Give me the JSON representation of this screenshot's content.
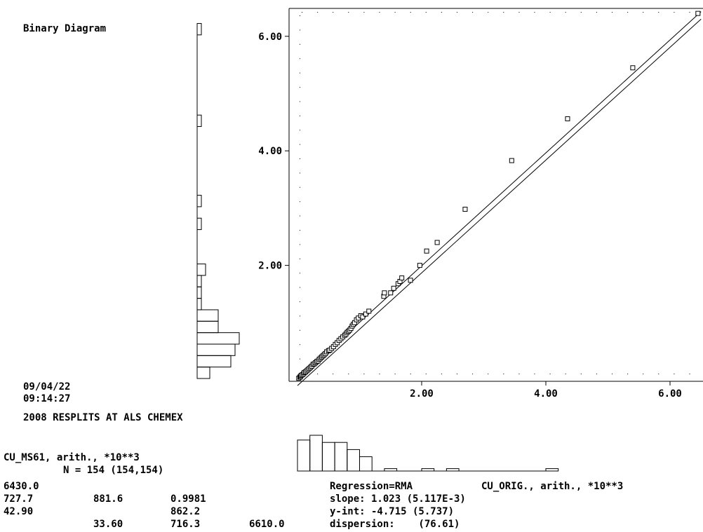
{
  "header": {
    "title": "Binary Diagram"
  },
  "info": {
    "date": "09/04/22",
    "time": "09:14:27",
    "project": "2008 RESPLITS AT ALS CHEMEX"
  },
  "stats_y": {
    "variable": "CU_MS61, arith., *10**3",
    "n_line": "N = 154 (154,154)",
    "max": "6430.0",
    "mean": "727.7",
    "sd": "881.6",
    "r": "0.9981",
    "min": "42.90",
    "v862": "862.2",
    "v33": "33.60",
    "v716": "716.3",
    "v6610": "6610.0"
  },
  "regression": {
    "method": "Regression=RMA",
    "x_variable": "CU_ORIG., arith., *10**3",
    "slope": "slope: 1.023 (5.117E-3)",
    "yint": "y-int: -4.715 (5.737)",
    "dispersion": "dispersion:    (76.61)"
  },
  "chart_data": {
    "type": "scatter",
    "xlim": [
      0,
      6.5
    ],
    "ylim": [
      0,
      6.45
    ],
    "xticks": [
      "2.00",
      "4.00",
      "6.00"
    ],
    "xtick_values": [
      2,
      4,
      6
    ],
    "yticks": [
      "2.00",
      "4.00",
      "6.00"
    ],
    "ytick_values": [
      2,
      4,
      6
    ],
    "grid": false,
    "points": [
      [
        0.02,
        0.03
      ],
      [
        0.04,
        0.05
      ],
      [
        0.05,
        0.06
      ],
      [
        0.06,
        0.08
      ],
      [
        0.08,
        0.09
      ],
      [
        0.1,
        0.11
      ],
      [
        0.11,
        0.13
      ],
      [
        0.13,
        0.14
      ],
      [
        0.15,
        0.16
      ],
      [
        0.17,
        0.18
      ],
      [
        0.19,
        0.2
      ],
      [
        0.21,
        0.22
      ],
      [
        0.23,
        0.24
      ],
      [
        0.25,
        0.27
      ],
      [
        0.27,
        0.28
      ],
      [
        0.29,
        0.3
      ],
      [
        0.31,
        0.32
      ],
      [
        0.33,
        0.33
      ],
      [
        0.35,
        0.36
      ],
      [
        0.37,
        0.38
      ],
      [
        0.39,
        0.4
      ],
      [
        0.41,
        0.42
      ],
      [
        0.43,
        0.44
      ],
      [
        0.45,
        0.46
      ],
      [
        0.47,
        0.49
      ],
      [
        0.5,
        0.51
      ],
      [
        0.52,
        0.52
      ],
      [
        0.55,
        0.55
      ],
      [
        0.58,
        0.58
      ],
      [
        0.61,
        0.62
      ],
      [
        0.64,
        0.65
      ],
      [
        0.67,
        0.69
      ],
      [
        0.7,
        0.72
      ],
      [
        0.73,
        0.75
      ],
      [
        0.76,
        0.78
      ],
      [
        0.78,
        0.8
      ],
      [
        0.8,
        0.83
      ],
      [
        0.82,
        0.85
      ],
      [
        0.84,
        0.87
      ],
      [
        0.86,
        0.9
      ],
      [
        0.88,
        0.94
      ],
      [
        0.9,
        0.97
      ],
      [
        0.92,
        1.0
      ],
      [
        0.95,
        1.05
      ],
      [
        0.98,
        1.08
      ],
      [
        1.02,
        1.12
      ],
      [
        1.05,
        1.1
      ],
      [
        1.1,
        1.15
      ],
      [
        1.15,
        1.2
      ],
      [
        1.39,
        1.46
      ],
      [
        1.4,
        1.52
      ],
      [
        1.5,
        1.52
      ],
      [
        1.55,
        1.6
      ],
      [
        1.62,
        1.68
      ],
      [
        1.65,
        1.72
      ],
      [
        1.68,
        1.78
      ],
      [
        1.82,
        1.74
      ],
      [
        1.97,
        2.0
      ],
      [
        2.08,
        2.25
      ],
      [
        2.25,
        2.4
      ],
      [
        2.7,
        2.98
      ],
      [
        3.45,
        3.83
      ],
      [
        4.35,
        4.56
      ],
      [
        5.4,
        5.45
      ],
      [
        6.45,
        6.4
      ]
    ],
    "lines": [
      {
        "x": [
          0,
          6.5
        ],
        "y": [
          0.02,
          6.43
        ]
      },
      {
        "x": [
          0,
          6.5
        ],
        "y": [
          -0.1,
          6.3
        ]
      }
    ],
    "histogram_y": {
      "bin_width": 0.2,
      "counts": [
        3,
        8,
        9,
        10,
        5,
        5,
        1,
        1,
        1,
        2,
        0,
        0,
        0,
        1,
        0,
        1,
        0,
        0,
        0,
        0,
        0,
        0,
        1,
        0,
        0,
        0,
        0,
        0,
        0,
        0,
        1
      ]
    },
    "histogram_x": {
      "bin_width": 0.2,
      "counts": [
        13,
        15,
        12,
        12,
        9,
        6,
        0,
        1,
        0,
        0,
        1,
        0,
        1,
        0,
        0,
        0,
        0,
        0,
        0,
        0,
        1
      ]
    }
  }
}
